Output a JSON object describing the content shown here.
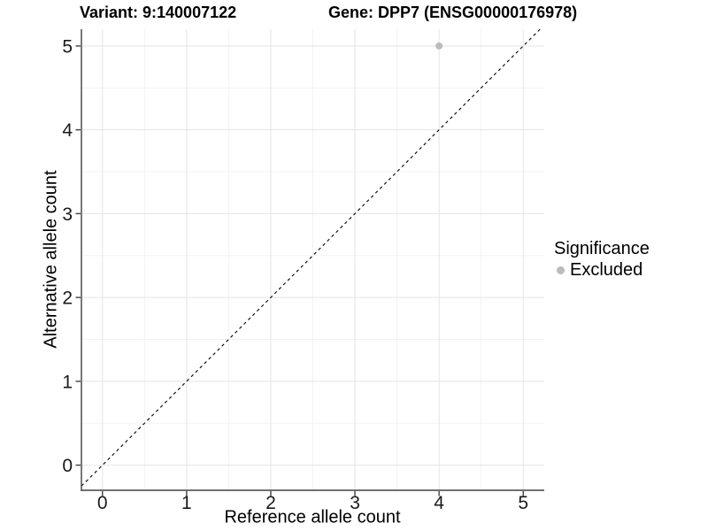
{
  "chart_data": {
    "type": "scatter",
    "title_left": "Variant: 9:140007122",
    "title_right": "Gene: DPP7 (ENSG00000176978)",
    "xlabel": "Reference allele count",
    "ylabel": "Alternative allele count",
    "xticks": [
      0,
      1,
      2,
      3,
      4,
      5
    ],
    "yticks": [
      0,
      1,
      2,
      3,
      4,
      5
    ],
    "xlim": [
      -0.25,
      5.25
    ],
    "ylim": [
      -0.3,
      5.2
    ],
    "grid": "major+minor",
    "points": [
      {
        "x": 4,
        "y": 5,
        "series": "Excluded"
      }
    ],
    "point_radius": 4,
    "diagonal": {
      "slope": 1,
      "intercept": 0,
      "style": "dashed"
    },
    "legend": {
      "title": "Significance",
      "position": "right",
      "entries": [
        {
          "label": "Excluded",
          "color": "#BCBCBC"
        }
      ]
    }
  },
  "colors": {
    "background": "#FFFFFF",
    "point": "#BCBCBC",
    "grid_major": "#E4E4E4",
    "grid_minor": "#F1F1F1",
    "axis_line": "#404040",
    "diagonal_line": "#000000",
    "tick_text": "#1A1A1A"
  }
}
